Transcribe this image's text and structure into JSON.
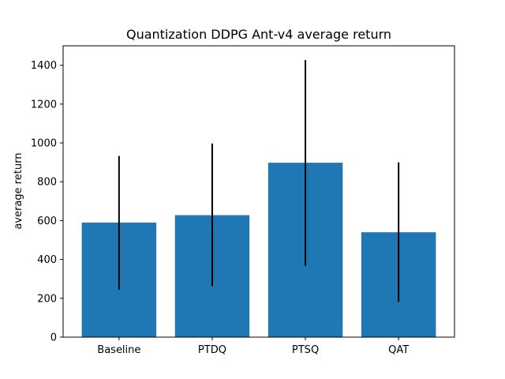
{
  "chart_data": {
    "type": "bar",
    "title": "Quantization DDPG Ant-v4 average return",
    "xlabel": "",
    "ylabel": "average return",
    "categories": [
      "Baseline",
      "PTDQ",
      "PTSQ",
      "QAT"
    ],
    "values": [
      590,
      628,
      898,
      540
    ],
    "error_low": [
      245,
      262,
      368,
      182
    ],
    "error_high": [
      933,
      997,
      1427,
      900
    ],
    "ylim": [
      0,
      1500
    ],
    "yticks": [
      0,
      200,
      400,
      600,
      800,
      1000,
      1200,
      1400
    ],
    "bar_color": "#1f77b4",
    "error_color": "#000000",
    "grid": false,
    "legend": false
  }
}
